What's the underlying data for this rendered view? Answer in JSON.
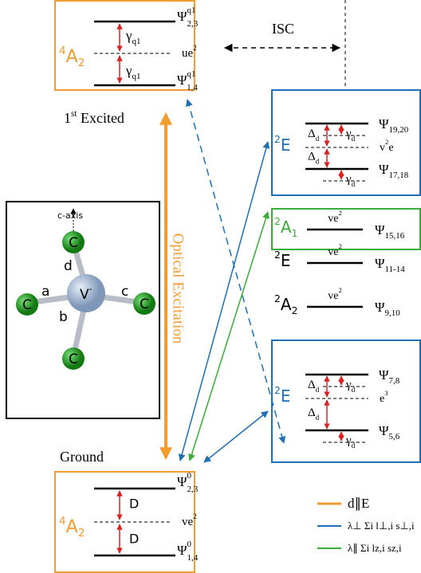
{
  "excited": {
    "term": {
      "sup": "4",
      "main": "A",
      "sub": "2"
    },
    "upper": {
      "main": "Ψ",
      "sup": "q1",
      "sub": "2,3"
    },
    "middle": {
      "main": "ue",
      "sup": "2"
    },
    "lower": {
      "main": "Ψ",
      "sup": "q1",
      "sub": "1,4"
    },
    "splittings": [
      {
        "main": "γ",
        "sub": "q1"
      },
      {
        "main": "γ",
        "sub": "q1"
      }
    ],
    "caption": {
      "main": "1",
      "sup": "st",
      "rest": " Excited"
    }
  },
  "isc": "ISC",
  "optical": "Optical Excitation",
  "e_upper": {
    "term": {
      "sup": "2",
      "main": "E"
    },
    "upper": {
      "main": "Ψ",
      "sub": "19,20"
    },
    "middle": {
      "main": "v",
      "sup": "2",
      "rest": "e"
    },
    "lower": {
      "main": "Ψ",
      "sub": "17,18"
    },
    "deltas": [
      {
        "main": "Δ",
        "sub": "d"
      },
      {
        "main": "Δ",
        "sub": "d"
      }
    ],
    "gammas": [
      {
        "main": "γ",
        "sub": "d"
      },
      {
        "main": "γ",
        "sub": "d"
      }
    ]
  },
  "a1": {
    "term": {
      "sup": "2",
      "main": "A",
      "sub": "1"
    },
    "config": {
      "main": "ve",
      "sup": "2"
    },
    "level": {
      "main": "Ψ",
      "sub": "15,16"
    }
  },
  "e_mid": {
    "term": {
      "sup": "2",
      "main": "E"
    },
    "config": {
      "main": "ve",
      "sup": "2"
    },
    "level": {
      "main": "Ψ",
      "sub": "11-14"
    }
  },
  "a2": {
    "term": {
      "sup": "2",
      "main": "A",
      "sub": "2"
    },
    "config": {
      "main": "ve",
      "sup": "2"
    },
    "level": {
      "main": "Ψ",
      "sub": "9,10"
    }
  },
  "e_lower": {
    "term": {
      "sup": "2",
      "main": "E"
    },
    "upper": {
      "main": "Ψ",
      "sub": "7,8"
    },
    "middle": {
      "main": "e",
      "sup": "3"
    },
    "lower": {
      "main": "Ψ",
      "sub": "5,6"
    },
    "deltas": [
      {
        "main": "Δ",
        "sub": "d"
      },
      {
        "main": "Δ",
        "sub": "d"
      }
    ],
    "gammas": [
      {
        "main": "γ",
        "sub": "d"
      },
      {
        "main": "γ",
        "sub": "d"
      }
    ]
  },
  "ground": {
    "caption": "Ground",
    "term": {
      "sup": "4",
      "main": "A",
      "sub": "2"
    },
    "upper": {
      "main": "Ψ",
      "sup": "0",
      "sub": "2,3"
    },
    "middle": {
      "main": "ve",
      "sup": "2"
    },
    "lower": {
      "main": "Ψ",
      "sup": "0",
      "sub": "1,4"
    },
    "splittings": [
      "D",
      "D"
    ]
  },
  "molecule": {
    "axis": "c-axis",
    "bonds": [
      "d",
      "a",
      "b",
      "c"
    ],
    "center": {
      "main": "V",
      "sup": "-"
    },
    "ligands": [
      "C",
      "C",
      "C",
      "C"
    ]
  },
  "legend": [
    "d∥E",
    "λ⊥ Σi l⊥,i s⊥,i",
    "λ∥ Σi lz,i sz,i"
  ]
}
